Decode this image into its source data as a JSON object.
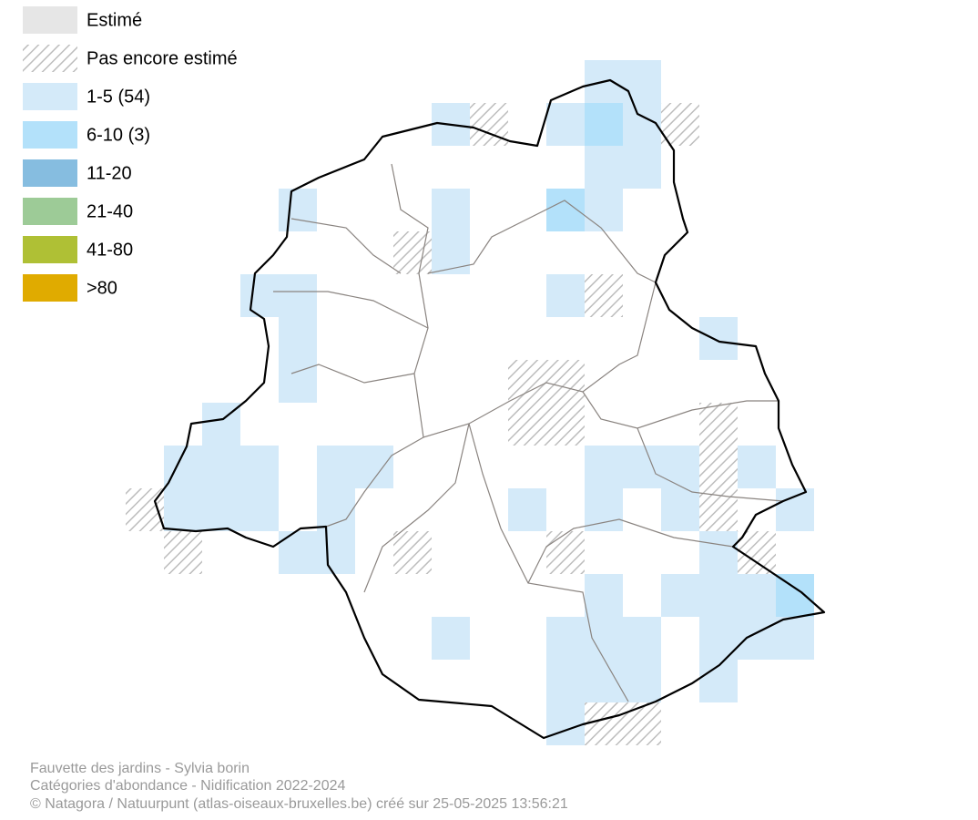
{
  "legend": [
    "Estimé",
    "Pas encore estimé",
    "1-5 (54)",
    "6-10 (3)",
    "11-20",
    "21-40",
    "41-80",
    ">80"
  ],
  "footer": [
    "Fauvette des jardins - Sylvia borin",
    "Catégories d'abondance - Nidification 2022-2024",
    "© Natagora / Natuurpunt (atlas-oiseaux-bruxelles.be) créé sur 25-05-2025 13:56:21"
  ]
}
